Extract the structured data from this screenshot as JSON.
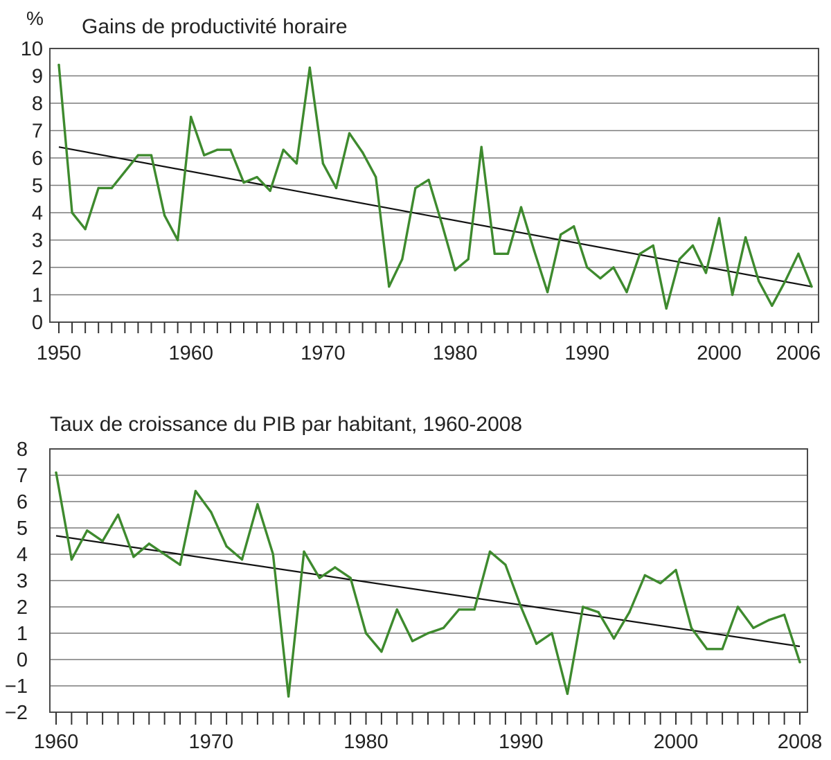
{
  "colors": {
    "series": "#3e8a2e",
    "trend": "#111111",
    "grid": "#7a7a7a"
  },
  "chart_data": [
    {
      "type": "line",
      "title": "Gains de productivité horaire",
      "ylabel": "%",
      "xlabel": "",
      "ylim": [
        0,
        10
      ],
      "yticks": [
        0,
        1,
        2,
        3,
        4,
        5,
        6,
        7,
        8,
        9,
        10
      ],
      "xlim": [
        1950,
        2007
      ],
      "xtick_labels": [
        1950,
        1960,
        1970,
        1980,
        1990,
        2000,
        2006
      ],
      "grid": true,
      "legend": "none",
      "x": [
        1950,
        1951,
        1952,
        1953,
        1954,
        1955,
        1956,
        1957,
        1958,
        1959,
        1960,
        1961,
        1962,
        1963,
        1964,
        1965,
        1966,
        1967,
        1968,
        1969,
        1970,
        1971,
        1972,
        1973,
        1974,
        1975,
        1976,
        1977,
        1978,
        1979,
        1980,
        1981,
        1982,
        1983,
        1984,
        1985,
        1986,
        1987,
        1988,
        1989,
        1990,
        1991,
        1992,
        1993,
        1994,
        1995,
        1996,
        1997,
        1998,
        1999,
        2000,
        2001,
        2002,
        2003,
        2004,
        2005,
        2006,
        2007
      ],
      "series": [
        {
          "values": [
            9.4,
            4.0,
            3.4,
            4.9,
            4.9,
            5.5,
            6.1,
            6.1,
            3.9,
            3.0,
            7.5,
            6.1,
            6.3,
            6.3,
            5.1,
            5.3,
            4.8,
            6.3,
            5.8,
            9.3,
            5.8,
            4.9,
            6.9,
            6.2,
            5.3,
            1.3,
            2.3,
            4.9,
            5.2,
            3.6,
            1.9,
            2.3,
            6.4,
            2.5,
            2.5,
            4.2,
            2.6,
            1.1,
            3.2,
            3.5,
            2.0,
            1.6,
            2.0,
            1.1,
            2.5,
            2.8,
            0.5,
            2.3,
            2.8,
            1.8,
            3.8,
            1.0,
            3.1,
            1.5,
            0.6,
            1.5,
            2.5,
            1.3
          ]
        }
      ],
      "trend": {
        "from": [
          1950,
          6.4
        ],
        "to": [
          2007,
          1.3
        ]
      }
    },
    {
      "type": "line",
      "title": "Taux de croissance du PIB par habitant, 1960-2008",
      "xlabel": "",
      "ylabel": "",
      "ylim": [
        -2,
        8
      ],
      "yticks": [
        -2,
        -1,
        0,
        1,
        2,
        3,
        4,
        5,
        6,
        7,
        8
      ],
      "xlim": [
        1960,
        2008
      ],
      "xtick_labels": [
        1960,
        1970,
        1980,
        1990,
        2000,
        2008
      ],
      "grid": true,
      "legend": "none",
      "x": [
        1960,
        1961,
        1962,
        1963,
        1964,
        1965,
        1966,
        1967,
        1968,
        1969,
        1970,
        1971,
        1972,
        1973,
        1974,
        1975,
        1976,
        1977,
        1978,
        1979,
        1980,
        1981,
        1982,
        1983,
        1984,
        1985,
        1986,
        1987,
        1988,
        1989,
        1990,
        1991,
        1992,
        1993,
        1994,
        1995,
        1996,
        1997,
        1998,
        1999,
        2000,
        2001,
        2002,
        2003,
        2004,
        2005,
        2006,
        2007,
        2008
      ],
      "series": [
        {
          "values": [
            7.1,
            3.8,
            4.9,
            4.5,
            5.5,
            3.9,
            4.4,
            4.0,
            3.6,
            6.4,
            5.6,
            4.3,
            3.8,
            5.9,
            4.0,
            -1.4,
            4.1,
            3.1,
            3.5,
            3.1,
            1.0,
            0.3,
            1.9,
            0.7,
            1.0,
            1.2,
            1.9,
            1.9,
            4.1,
            3.6,
            2.0,
            0.6,
            1.0,
            -1.3,
            2.0,
            1.8,
            0.8,
            1.8,
            3.2,
            2.9,
            3.4,
            1.2,
            0.4,
            0.4,
            2.0,
            1.2,
            1.5,
            1.7,
            -0.1
          ]
        }
      ],
      "trend": {
        "from": [
          1960,
          4.7
        ],
        "to": [
          2008,
          0.5
        ]
      }
    }
  ]
}
